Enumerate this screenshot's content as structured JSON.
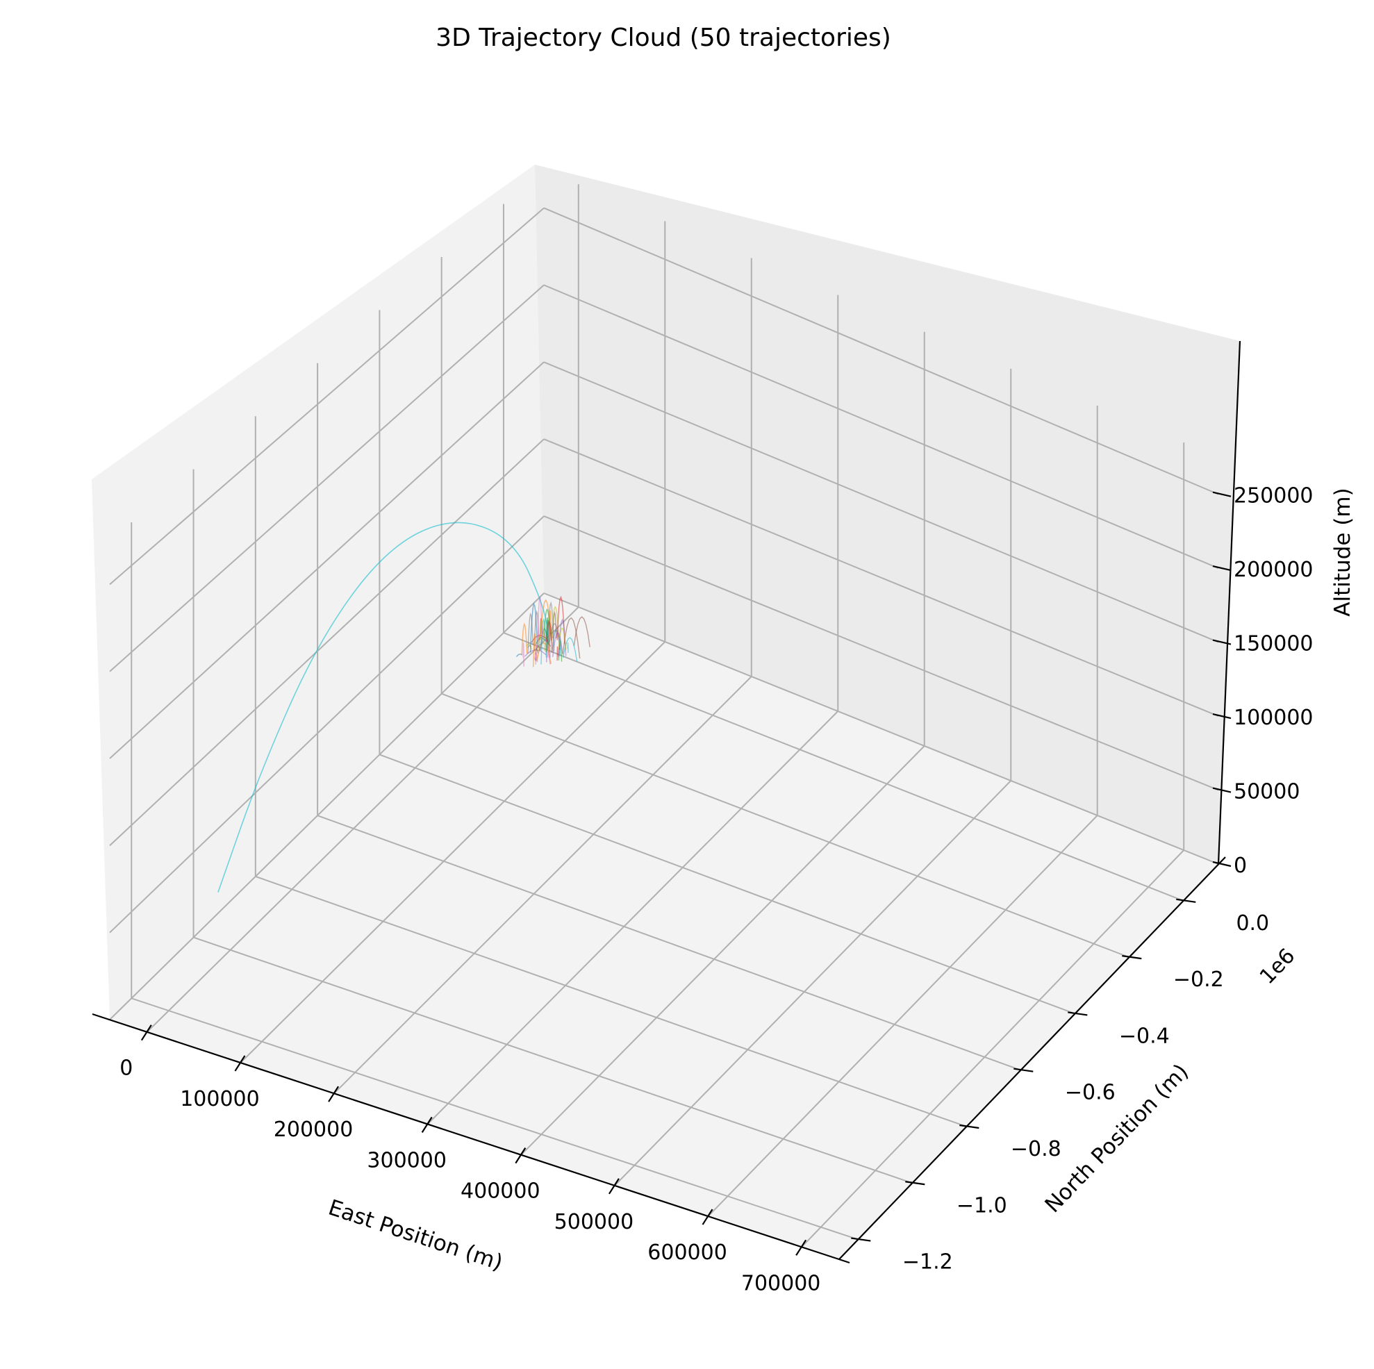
{
  "chart_data": {
    "type": "line",
    "projection": "3d",
    "title": "3D Trajectory Cloud (50 trajectories)",
    "xlabel": "East Position (m)",
    "ylabel": "North Position (m)",
    "zlabel": "Altitude (m)",
    "x_ticks": [
      "0",
      "100000",
      "200000",
      "300000",
      "400000",
      "500000",
      "600000",
      "700000"
    ],
    "y_ticks": [
      "−1.2",
      "−1.0",
      "−0.8",
      "−0.6",
      "−0.4",
      "−0.2",
      "0.0"
    ],
    "y_offset_label": "1e6",
    "z_ticks": [
      "0",
      "50000",
      "100000",
      "150000",
      "200000",
      "250000"
    ],
    "xlim": [
      -40000,
      740000
    ],
    "ylim": [
      -1270000,
      130000
    ],
    "zlim": [
      0,
      275000
    ],
    "grid": true,
    "legend": "none",
    "series_count": 50,
    "highlight_series": {
      "color": "#17becf",
      "x": [
        5000,
        5500,
        6200,
        7000,
        7800,
        8600,
        9300,
        10000
      ],
      "y": [
        20000,
        5000,
        -100000,
        -300000,
        -520000,
        -740000,
        -930000,
        -1070000
      ],
      "z": [
        0,
        25000,
        90000,
        140000,
        158000,
        140000,
        95000,
        48000
      ]
    },
    "cluster": {
      "colors": [
        "#1f77b4",
        "#ff7f0e",
        "#2ca02c",
        "#d62728",
        "#9467bd",
        "#8c564b",
        "#e377c2",
        "#7f7f7f",
        "#bcbd22",
        "#17becf"
      ],
      "x_range": [
        -10000,
        30000
      ],
      "y_range": [
        -40000,
        40000
      ],
      "z_range": [
        0,
        30000
      ]
    }
  }
}
